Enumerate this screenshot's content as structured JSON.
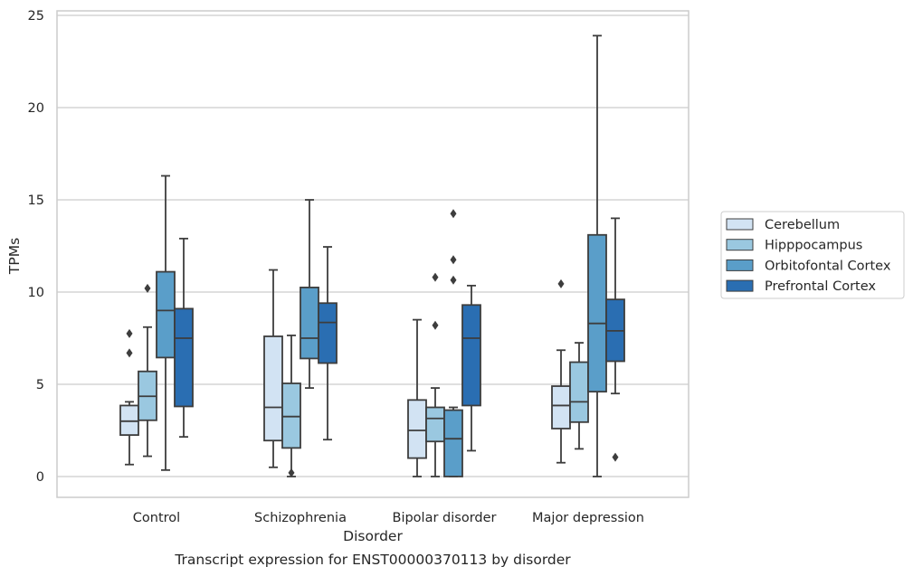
{
  "chart_data": {
    "type": "box",
    "caption": "Transcript expression for ENST00000370113 by disorder",
    "xlabel": "Disorder",
    "ylabel": "TPMs",
    "ylim": [
      -1.1,
      25.3
    ],
    "yticks": [
      0,
      5,
      10,
      15,
      20,
      25
    ],
    "grid": "horizontal",
    "legend_position": "right",
    "categories": [
      "Control",
      "Schizophrenia",
      "Bipolar disorder",
      "Major depression"
    ],
    "series": [
      {
        "name": "Cerebellum",
        "color": "#d2e3f3",
        "boxes": [
          {
            "whislo": 0.65,
            "q1": 2.25,
            "med": 3.0,
            "q3": 3.85,
            "whishi": 4.05,
            "fliers": [
              6.7,
              7.75
            ]
          },
          {
            "whislo": 0.5,
            "q1": 1.95,
            "med": 3.75,
            "q3": 7.6,
            "whishi": 11.2,
            "fliers": []
          },
          {
            "whislo": 0.0,
            "q1": 1.0,
            "med": 2.5,
            "q3": 4.15,
            "whishi": 8.5,
            "fliers": []
          },
          {
            "whislo": 0.75,
            "q1": 2.6,
            "med": 3.85,
            "q3": 4.9,
            "whishi": 6.85,
            "fliers": [
              10.45
            ]
          }
        ]
      },
      {
        "name": "Hipppocampus",
        "color": "#9ac8e0",
        "boxes": [
          {
            "whislo": 1.1,
            "q1": 3.05,
            "med": 4.35,
            "q3": 5.7,
            "whishi": 8.1,
            "fliers": [
              10.2
            ]
          },
          {
            "whislo": 0.0,
            "q1": 1.55,
            "med": 3.25,
            "q3": 5.05,
            "whishi": 7.65,
            "fliers": [
              0.2
            ]
          },
          {
            "whislo": 0.0,
            "q1": 1.9,
            "med": 3.15,
            "q3": 3.75,
            "whishi": 4.8,
            "fliers": [
              8.2,
              10.8
            ]
          },
          {
            "whislo": 1.5,
            "q1": 2.95,
            "med": 4.05,
            "q3": 6.2,
            "whishi": 7.25,
            "fliers": []
          }
        ]
      },
      {
        "name": "Orbitofontal Cortex",
        "color": "#5a9ec9",
        "boxes": [
          {
            "whislo": 0.35,
            "q1": 6.45,
            "med": 9.0,
            "q3": 11.1,
            "whishi": 16.3,
            "fliers": []
          },
          {
            "whislo": 4.8,
            "q1": 6.4,
            "med": 7.5,
            "q3": 10.25,
            "whishi": 15.0,
            "fliers": []
          },
          {
            "whislo": 0.0,
            "q1": 0.0,
            "med": 2.05,
            "q3": 3.6,
            "whishi": 3.75,
            "fliers": [
              10.65,
              11.75,
              14.25
            ]
          },
          {
            "whislo": 0.0,
            "q1": 4.6,
            "med": 8.3,
            "q3": 13.1,
            "whishi": 23.9,
            "fliers": []
          }
        ]
      },
      {
        "name": "Prefrontal Cortex",
        "color": "#2a6eb2",
        "boxes": [
          {
            "whislo": 2.15,
            "q1": 3.8,
            "med": 7.5,
            "q3": 9.1,
            "whishi": 12.9,
            "fliers": []
          },
          {
            "whislo": 2.0,
            "q1": 6.15,
            "med": 8.35,
            "q3": 9.4,
            "whishi": 12.45,
            "fliers": []
          },
          {
            "whislo": 1.4,
            "q1": 3.85,
            "med": 7.5,
            "q3": 9.3,
            "whishi": 10.35,
            "fliers": []
          },
          {
            "whislo": 4.5,
            "q1": 6.25,
            "med": 7.9,
            "q3": 9.6,
            "whishi": 14.0,
            "fliers": [
              1.05
            ]
          }
        ]
      }
    ]
  }
}
